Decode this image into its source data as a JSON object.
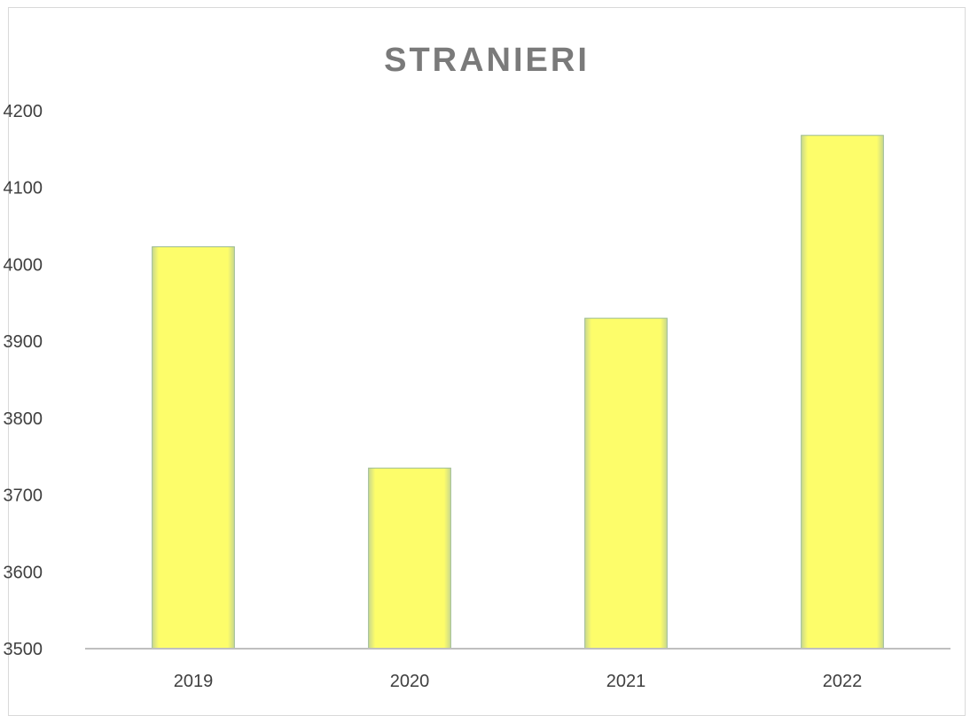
{
  "chart_data": {
    "type": "bar",
    "title": "STRANIERI",
    "xlabel": "",
    "ylabel": "",
    "categories": [
      "2019",
      "2020",
      "2021",
      "2022"
    ],
    "values": [
      4023,
      3735,
      3930,
      4168
    ],
    "ylim": [
      3500,
      4200
    ],
    "yticks": [
      3500,
      3600,
      3700,
      3800,
      3900,
      4000,
      4100,
      4200
    ],
    "grid": false,
    "legend": "none",
    "colors": {
      "bar_fill": "#fdfd6a",
      "bar_edge": "#9dbb94",
      "axis": "#bfbfbf",
      "title": "#7a7a7a",
      "tick_text": "#3f3f3f"
    }
  }
}
